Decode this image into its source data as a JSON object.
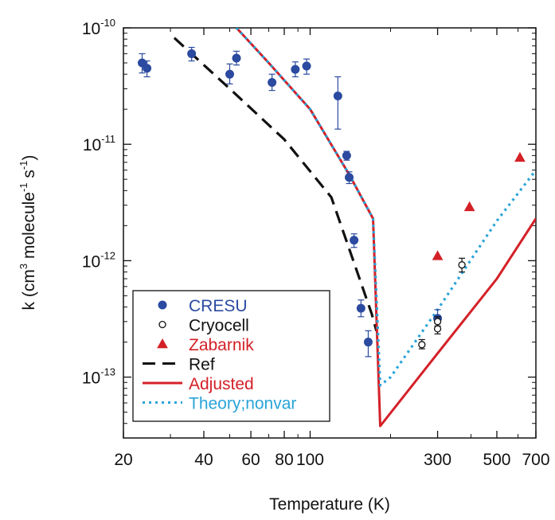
{
  "chart_data": {
    "type": "scatter",
    "xlabel": "Temperature (K)",
    "ylabel_parts": [
      "k (cm",
      "3",
      " molecule",
      "-1",
      " s",
      "-1",
      ")"
    ],
    "xscale": "log",
    "yscale": "log",
    "xlim": [
      20,
      700
    ],
    "ylim": [
      3e-14,
      1e-10
    ],
    "x_ticks": [
      {
        "value": 20,
        "label": "20"
      },
      {
        "value": 40,
        "label": "40"
      },
      {
        "value": 60,
        "label": "60"
      },
      {
        "value": 80,
        "label": "80"
      },
      {
        "value": 100,
        "label": "100"
      },
      {
        "value": 300,
        "label": "300"
      },
      {
        "value": 500,
        "label": "500"
      },
      {
        "value": 700,
        "label": "700"
      }
    ],
    "y_ticks": [
      {
        "value": 1e-13,
        "base": "10",
        "exp": "-13"
      },
      {
        "value": 1e-12,
        "base": "10",
        "exp": "-12"
      },
      {
        "value": 1e-11,
        "base": "10",
        "exp": "-11"
      },
      {
        "value": 1e-10,
        "base": "10",
        "exp": "-10"
      }
    ],
    "grid": false,
    "legend_position": "bottom-left",
    "series": [
      {
        "name": "CRESU",
        "kind": "points",
        "marker": "filled-circle",
        "color": "#2b4aa0",
        "points": [
          {
            "x": 23.5,
            "y": 5e-11,
            "lo": 4.1e-11,
            "hi": 6e-11
          },
          {
            "x": 24.5,
            "y": 4.5e-11,
            "lo": 3.8e-11,
            "hi": 5.2e-11
          },
          {
            "x": 36,
            "y": 6e-11,
            "lo": 5.2e-11,
            "hi": 6.8e-11
          },
          {
            "x": 50,
            "y": 4e-11,
            "lo": 3.3e-11,
            "hi": 4.9e-11
          },
          {
            "x": 53,
            "y": 5.5e-11,
            "lo": 4.8e-11,
            "hi": 6.3e-11
          },
          {
            "x": 72,
            "y": 3.4e-11,
            "lo": 2.9e-11,
            "hi": 4e-11
          },
          {
            "x": 88,
            "y": 4.4e-11,
            "lo": 3.8e-11,
            "hi": 5.1e-11
          },
          {
            "x": 97,
            "y": 4.7e-11,
            "lo": 4e-11,
            "hi": 5.4e-11
          },
          {
            "x": 127,
            "y": 2.6e-11,
            "lo": 1.35e-11,
            "hi": 3.8e-11
          },
          {
            "x": 137,
            "y": 8e-12,
            "lo": 7.3e-12,
            "hi": 8.7e-12
          },
          {
            "x": 140,
            "y": 5.2e-12,
            "lo": 4.6e-12,
            "hi": 5.8e-12
          },
          {
            "x": 146,
            "y": 1.5e-12,
            "lo": 1.3e-12,
            "hi": 1.7e-12
          },
          {
            "x": 155,
            "y": 3.9e-13,
            "lo": 3.3e-13,
            "hi": 4.6e-13
          },
          {
            "x": 165,
            "y": 2e-13,
            "lo": 1.5e-13,
            "hi": 2.5e-13
          },
          {
            "x": 300,
            "y": 3.2e-13,
            "lo": 2.6e-13,
            "hi": 3.8e-13
          }
        ]
      },
      {
        "name": "Cryocell",
        "kind": "points",
        "marker": "open-circle",
        "color": "#111111",
        "points": [
          {
            "x": 262,
            "y": 1.9e-13,
            "lo": 1.75e-13,
            "hi": 2.1e-13
          },
          {
            "x": 300,
            "y": 2.6e-13,
            "lo": 2.35e-13,
            "hi": 2.9e-13
          },
          {
            "x": 300,
            "y": 3e-13,
            "lo": 2.75e-13,
            "hi": 3.3e-13
          },
          {
            "x": 370,
            "y": 9.2e-13,
            "lo": 8e-13,
            "hi": 1.05e-12
          }
        ]
      },
      {
        "name": "Zabarnik",
        "kind": "points",
        "marker": "filled-triangle",
        "color": "#d42027",
        "points": [
          {
            "x": 300,
            "y": 1.1e-12
          },
          {
            "x": 395,
            "y": 2.9e-12
          },
          {
            "x": 610,
            "y": 7.7e-12
          }
        ]
      },
      {
        "name": "Ref",
        "kind": "line",
        "dash": "dashed",
        "color": "#111111",
        "points": [
          {
            "x": 31,
            "y": 8.2e-11
          },
          {
            "x": 50,
            "y": 3e-11
          },
          {
            "x": 80,
            "y": 1.1e-11
          },
          {
            "x": 120,
            "y": 3.5e-12
          },
          {
            "x": 150,
            "y": 8e-13
          },
          {
            "x": 170,
            "y": 3.5e-13
          },
          {
            "x": 177,
            "y": 2.5e-13
          }
        ]
      },
      {
        "name": "Adjusted",
        "kind": "line",
        "dash": "solid",
        "color": "#d42027",
        "points": [
          {
            "x": 53,
            "y": 1e-10
          },
          {
            "x": 70,
            "y": 5e-11
          },
          {
            "x": 100,
            "y": 2e-11
          },
          {
            "x": 140,
            "y": 5.5e-12
          },
          {
            "x": 172,
            "y": 2.3e-12
          },
          {
            "x": 183,
            "y": 3.8e-14
          },
          {
            "x": 300,
            "y": 1.6e-13
          },
          {
            "x": 500,
            "y": 7e-13
          },
          {
            "x": 700,
            "y": 2.3e-12
          }
        ]
      },
      {
        "name": "Theory;nonvar",
        "kind": "line",
        "dash": "dotted",
        "color": "#2aa4d8",
        "points": [
          {
            "x": 53,
            "y": 1e-10
          },
          {
            "x": 70,
            "y": 5e-11
          },
          {
            "x": 100,
            "y": 2e-11
          },
          {
            "x": 140,
            "y": 5.5e-12
          },
          {
            "x": 172,
            "y": 2.3e-12
          },
          {
            "x": 183,
            "y": 8.5e-14
          },
          {
            "x": 200,
            "y": 1e-13
          },
          {
            "x": 300,
            "y": 3.8e-13
          },
          {
            "x": 500,
            "y": 2.2e-12
          },
          {
            "x": 700,
            "y": 6e-12
          }
        ]
      }
    ]
  }
}
